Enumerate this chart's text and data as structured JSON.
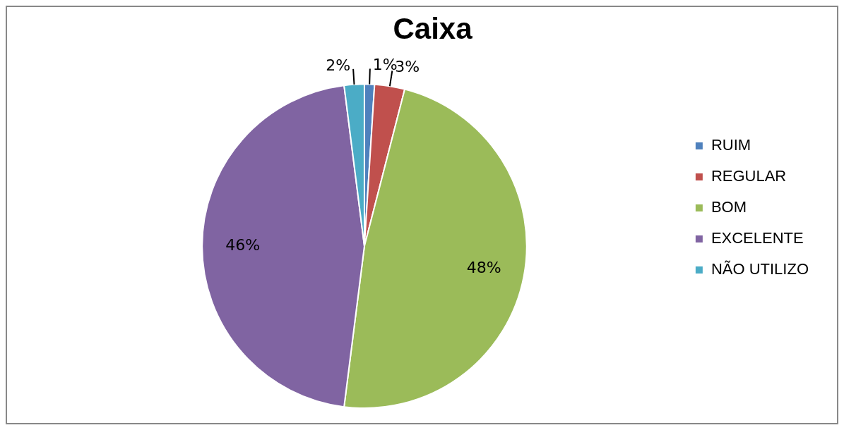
{
  "chart_data": {
    "type": "pie",
    "title": "Caixa",
    "categories": [
      "RUIM",
      "REGULAR",
      "BOM",
      "EXCELENTE",
      "NÃO UTILIZO"
    ],
    "values": [
      1,
      3,
      48,
      46,
      2
    ],
    "colors": [
      "#4f81bd",
      "#c0504d",
      "#9bbb59",
      "#8064a2",
      "#4bacc6"
    ],
    "value_labels": [
      "1%",
      "3%",
      "48%",
      "46%",
      "2%"
    ],
    "legend": "right"
  }
}
